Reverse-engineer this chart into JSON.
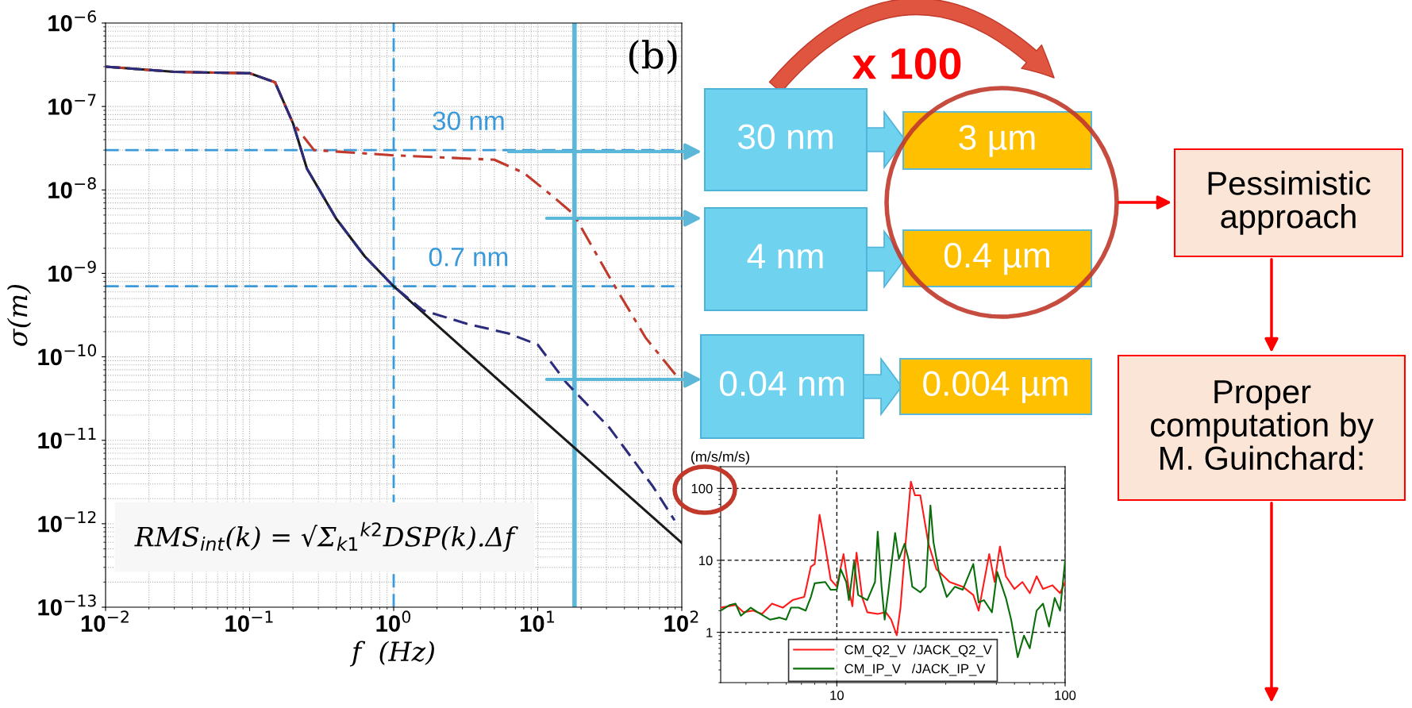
{
  "chart_data": [
    {
      "type": "line",
      "xlabel": "f  (Hz)",
      "ylabel": "σ(m)",
      "log": "xy",
      "grid": true,
      "xlim": [
        0.01,
        100
      ],
      "ylim": [
        1e-13,
        1e-06
      ],
      "xticks": [
        {
          "value": 0.01,
          "label": "10$^{−2}$"
        },
        {
          "value": 0.1,
          "label": "10$^{−1}$"
        },
        {
          "value": 1,
          "label": "10$^{0}$"
        },
        {
          "value": 10,
          "label": "10$^{1}$"
        },
        {
          "value": 100,
          "label": "10$^{2}$"
        }
      ],
      "yticks": [
        {
          "value": 1e-13,
          "label": "10$^{−13}$"
        },
        {
          "value": 1e-12,
          "label": "10$^{−12}$"
        },
        {
          "value": 1e-11,
          "label": "10$^{−11}$"
        },
        {
          "value": 1e-10,
          "label": "10$^{−10}$"
        },
        {
          "value": 1e-09,
          "label": "10$^{−9}$"
        },
        {
          "value": 1e-08,
          "label": "10$^{−8}$"
        },
        {
          "value": 1e-07,
          "label": "10$^{−7}$"
        },
        {
          "value": 1e-06,
          "label": "10$^{−6}$"
        }
      ],
      "series": [
        {
          "color": "#1a1a1a",
          "line_style": "solid",
          "x": [
            0.01,
            0.03,
            0.1,
            0.15,
            0.2,
            0.25,
            0.4,
            0.63,
            1,
            10,
            100
          ],
          "values": [
            3e-07,
            2.6e-07,
            2.5e-07,
            1.95e-07,
            6.3e-08,
            1.8e-08,
            4.5e-09,
            1.6e-09,
            7e-10,
            2e-11,
            5.9e-13
          ]
        },
        {
          "color": "#c0392b",
          "line_style": "dashdot",
          "x": [
            0.01,
            0.03,
            0.1,
            0.15,
            0.2,
            0.28,
            1,
            5,
            8,
            12.6,
            17.8,
            31.6,
            56,
            95
          ],
          "values": [
            3e-07,
            2.6e-07,
            2.5e-07,
            1.95e-07,
            6.3e-08,
            3e-08,
            2.6e-08,
            2.3e-08,
            1.6e-08,
            8.5e-09,
            5.1e-09,
            8.9e-10,
            1.7e-10,
            5.5e-11
          ]
        },
        {
          "color": "#2c2c7c",
          "line_style": "dashed",
          "x": [
            0.01,
            0.03,
            0.1,
            0.15,
            0.2,
            0.25,
            0.4,
            0.63,
            1,
            1.6,
            3.2,
            6.3,
            10,
            15.8,
            31.6,
            63,
            89
          ],
          "values": [
            3e-07,
            2.6e-07,
            2.5e-07,
            1.95e-07,
            6.3e-08,
            1.8e-08,
            4.5e-09,
            1.6e-09,
            7e-10,
            3.6e-10,
            2.5e-10,
            1.9e-10,
            1.4e-10,
            4.9e-11,
            1.4e-11,
            2.8e-12,
            1.1e-12
          ]
        }
      ],
      "ref_lines": [
        {
          "axis": "y",
          "value": 3e-08,
          "label": "30 nm",
          "color": "#3a9ad9",
          "line_style": "dashed"
        },
        {
          "axis": "y",
          "value": 7e-10,
          "label": "0.7 nm",
          "color": "#3a9ad9",
          "line_style": "dashed"
        },
        {
          "axis": "x",
          "value": 1,
          "color": "#3a9ad9",
          "line_style": "dashed"
        },
        {
          "axis": "x",
          "value": 18,
          "color": "#5bb8d8",
          "line_style": "solid"
        }
      ],
      "annotations": [
        "(b)",
        "RMS$_{int}$(k) = √Σ$_{k1}$$^{k2}$DSP(k).Δf"
      ]
    },
    {
      "type": "line",
      "ylabel": "(m/s/m/s)",
      "log": "xy",
      "grid": true,
      "legend": "bottom",
      "xlim": [
        3.1,
        100
      ],
      "ylim": [
        0.2,
        200
      ],
      "xticks": [
        10,
        100
      ],
      "yticks": [
        1,
        10,
        100
      ],
      "series": [
        {
          "name": "CM_Q2_V  /JACK_Q2_V",
          "color": "#ff1a1a",
          "line_style": "solid",
          "x": [
            3.1,
            3.6,
            3.9,
            4.3,
            4.7,
            5.2,
            5.8,
            6.4,
            7.2,
            7.7,
            8.0,
            8.4,
            8.9,
            9.4,
            10,
            10.7,
            11.3,
            11.7,
            12.2,
            12.9,
            13.6,
            15.1,
            16.4,
            17.3,
            18.3,
            19.0,
            20.0,
            21.1,
            22.0,
            23.2,
            25.2,
            27.3,
            31.2,
            35.6,
            39.6,
            41.8,
            46.5,
            49.1,
            51.8,
            55,
            60,
            65,
            70,
            75,
            80,
            88,
            95,
            100
          ],
          "values": [
            2.2,
            2.4,
            1.9,
            2.0,
            1.8,
            2.5,
            2.2,
            2.8,
            3.1,
            8.2,
            8.9,
            43,
            15.6,
            5.4,
            4.3,
            12.2,
            3.9,
            2.3,
            12.8,
            3.1,
            1.9,
            1.8,
            1.9,
            1.5,
            0.91,
            2.2,
            17,
            124,
            80,
            80,
            17,
            7.5,
            5.0,
            4.3,
            3.3,
            2.0,
            12.2,
            5.0,
            15.6,
            6,
            4,
            5,
            3.5,
            6,
            4,
            4.5,
            3.5,
            5
          ]
        },
        {
          "name": "CM_IP_V   /JACK_IP_V",
          "color": "#0a6e0a",
          "line_style": "solid",
          "x": [
            3.1,
            3.4,
            3.6,
            3.8,
            4.2,
            4.5,
            5.1,
            5.6,
            6.0,
            6.3,
            6.8,
            7.3,
            7.7,
            8.0,
            8.9,
            9.4,
            10,
            10.4,
            11.0,
            11.3,
            11.9,
            12.4,
            13.6,
            14.7,
            15.1,
            15.7,
            16.2,
            16.8,
            18.0,
            18.7,
            19.8,
            20.6,
            21.4,
            23.2,
            24.5,
            25.7,
            26.5,
            28.0,
            30.3,
            32.9,
            35.6,
            39.6,
            41.8,
            44.1,
            47.8,
            50.4,
            55,
            58,
            62,
            66,
            70,
            75,
            80,
            85,
            90,
            95,
            100
          ],
          "values": [
            2.0,
            2.4,
            2.5,
            1.7,
            2.2,
            1.9,
            1.5,
            1.6,
            1.5,
            2.2,
            2.2,
            2.0,
            3.1,
            4.8,
            5.0,
            3.9,
            3.9,
            7.5,
            5.0,
            2.8,
            9.6,
            3.3,
            2.8,
            5.0,
            25,
            4.3,
            1.5,
            3.6,
            24,
            10.4,
            17,
            10.4,
            4.3,
            3.6,
            4.3,
            58,
            18,
            6.9,
            3.1,
            4.3,
            3.9,
            8.9,
            2.6,
            2.8,
            1.9,
            6.9,
            3,
            1.5,
            0.45,
            0.9,
            0.6,
            2,
            2.5,
            1.2,
            3,
            2,
            10
          ]
        }
      ]
    },
    {
      "type": "other",
      "annotations": [
        "x 100",
        "30 nm",
        "4 nm",
        "0.04 nm",
        "3 µm",
        "0.4 µm",
        "0.004 µm",
        "Pessimistic approach",
        "Proper computation by M. Guinchard:"
      ]
    }
  ]
}
